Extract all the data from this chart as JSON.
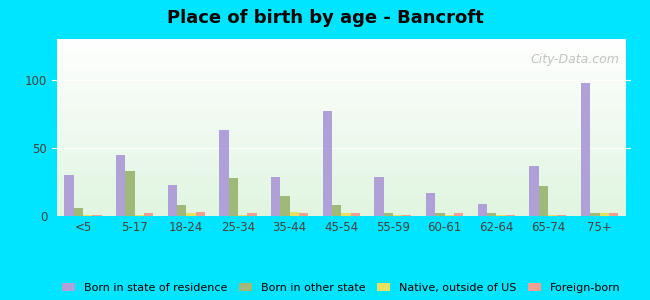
{
  "title": "Place of birth by age - Bancroft",
  "background_outer": "#00e5ff",
  "categories": [
    "<5",
    "5-17",
    "18-24",
    "25-34",
    "35-44",
    "45-54",
    "55-59",
    "60-61",
    "62-64",
    "65-74",
    "75+"
  ],
  "series": {
    "Born in state of residence": {
      "color": "#b0a0d8",
      "values": [
        30,
        45,
        23,
        63,
        29,
        77,
        29,
        17,
        9,
        37,
        98
      ]
    },
    "Born in other state": {
      "color": "#a0b878",
      "values": [
        6,
        33,
        8,
        28,
        15,
        8,
        2,
        2,
        2,
        22,
        2
      ]
    },
    "Native, outside of US": {
      "color": "#e8e060",
      "values": [
        1,
        1,
        2,
        1,
        3,
        2,
        1,
        1,
        1,
        1,
        2
      ]
    },
    "Foreign-born": {
      "color": "#f0a090",
      "values": [
        1,
        2,
        3,
        2,
        2,
        2,
        1,
        2,
        1,
        1,
        2
      ]
    }
  },
  "ylim": [
    0,
    130
  ],
  "yticks": [
    0,
    50,
    100
  ],
  "bar_width": 0.18,
  "figsize": [
    6.5,
    3.0
  ],
  "dpi": 100
}
